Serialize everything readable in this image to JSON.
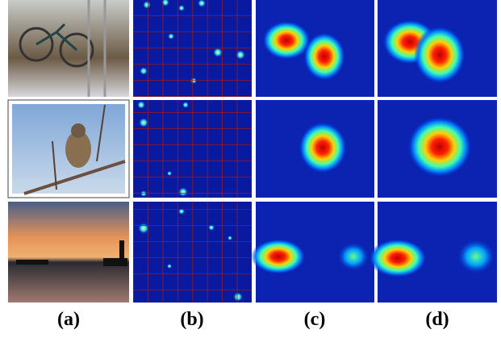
{
  "figure": {
    "panel_labels": [
      "(a)",
      "(b)",
      "(c)",
      "(d)"
    ]
  }
}
